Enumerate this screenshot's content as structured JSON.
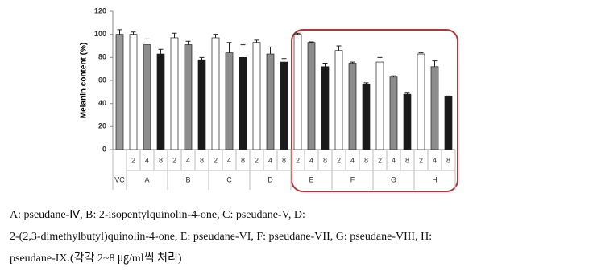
{
  "chart_data": {
    "type": "grouped-bar",
    "y_label": "Melanin content (%)",
    "ylim": [
      0,
      120
    ],
    "yticks": [
      0,
      20,
      40,
      60,
      80,
      100,
      120
    ],
    "control": {
      "label": "VC",
      "value": 100,
      "error": 4,
      "color": "#999999"
    },
    "doses": [
      "2",
      "4",
      "8"
    ],
    "dose_colors": [
      "#ffffff",
      "#8c8c8c",
      "#1a1a1a"
    ],
    "groups": [
      {
        "name": "A",
        "values": [
          100,
          91,
          83
        ],
        "errors": [
          2,
          5,
          4
        ]
      },
      {
        "name": "B",
        "values": [
          97,
          91,
          78
        ],
        "errors": [
          4,
          3,
          2
        ]
      },
      {
        "name": "C",
        "values": [
          97,
          84,
          80
        ],
        "errors": [
          3,
          9,
          11
        ]
      },
      {
        "name": "D",
        "values": [
          93,
          83,
          76
        ],
        "errors": [
          2,
          6,
          3
        ]
      },
      {
        "name": "E",
        "values": [
          100,
          93,
          72
        ],
        "errors": [
          1,
          0.5,
          3
        ]
      },
      {
        "name": "F",
        "values": [
          86,
          75,
          57
        ],
        "errors": [
          4,
          1,
          1
        ]
      },
      {
        "name": "G",
        "values": [
          76,
          63,
          48
        ],
        "errors": [
          4,
          1,
          1
        ]
      },
      {
        "name": "H",
        "values": [
          83,
          72,
          46
        ],
        "errors": [
          1,
          5,
          0.5
        ]
      }
    ]
  },
  "caption": [
    "A: pseudane-Ⅳ, B: 2-isopentylquinolin-4-one, C: pseudane-V, D:",
    "2-(2,3-dimethylbutyl)quinolin-4-one, E: pseudane-VI, F: pseudane-VII, G: pseudane-VIII, H:",
    "pseudane-IX.(각각 2~8 ㎍/ml씩 처리)"
  ]
}
